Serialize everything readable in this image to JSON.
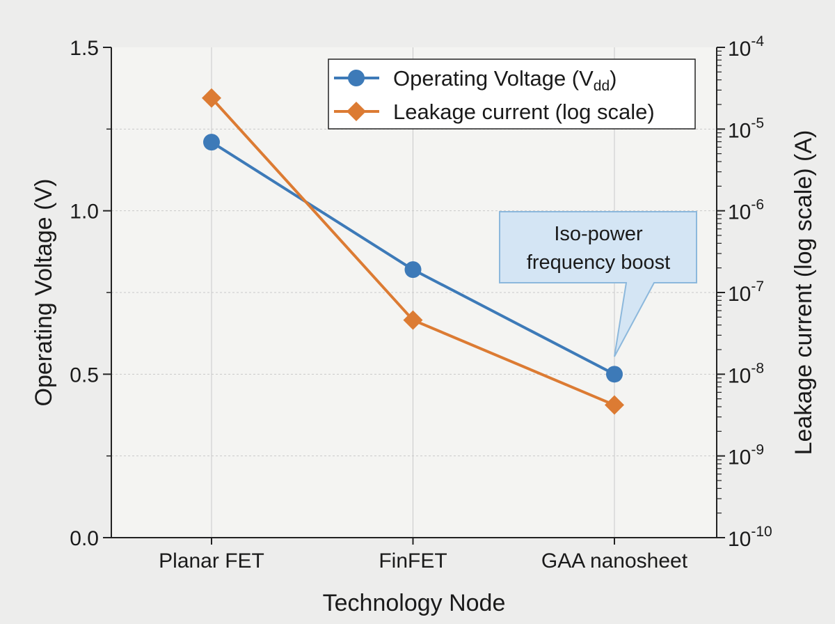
{
  "chart_data": {
    "type": "line",
    "categories": [
      "Planar FET",
      "FinFET",
      "GAA nanosheet"
    ],
    "xlabel": "Technology Node",
    "y_left": {
      "label": "Operating Voltage (V)",
      "range": [
        0.0,
        1.5
      ],
      "ticks": [
        "0.0",
        "0.5",
        "1.0",
        "1.5"
      ]
    },
    "y_right": {
      "label": "Leakage current (log scale) (A)",
      "scale": "log",
      "range": [
        1e-10,
        0.0001
      ],
      "tick_mantissa": "10",
      "tick_exponents": [
        "-10",
        "-9",
        "-8",
        "-7",
        "-6",
        "-5",
        "-4"
      ]
    },
    "series": [
      {
        "name_main": "Operating Voltage (V",
        "name_sub": "dd",
        "name_end": ")",
        "axis": "left",
        "color": "#3d7ab8",
        "marker": "circle",
        "values": [
          1.21,
          0.82,
          0.5
        ]
      },
      {
        "name_main": "Leakage current (log scale)",
        "axis": "right",
        "color": "#dc7b33",
        "marker": "diamond",
        "values": [
          2.4e-05,
          4.6e-08,
          4.2e-09
        ]
      }
    ],
    "annotation": {
      "lines": [
        "Iso-power",
        "frequency boost"
      ],
      "points_to": "GAA nanosheet"
    },
    "legend_position": "top-right",
    "grid": true
  }
}
